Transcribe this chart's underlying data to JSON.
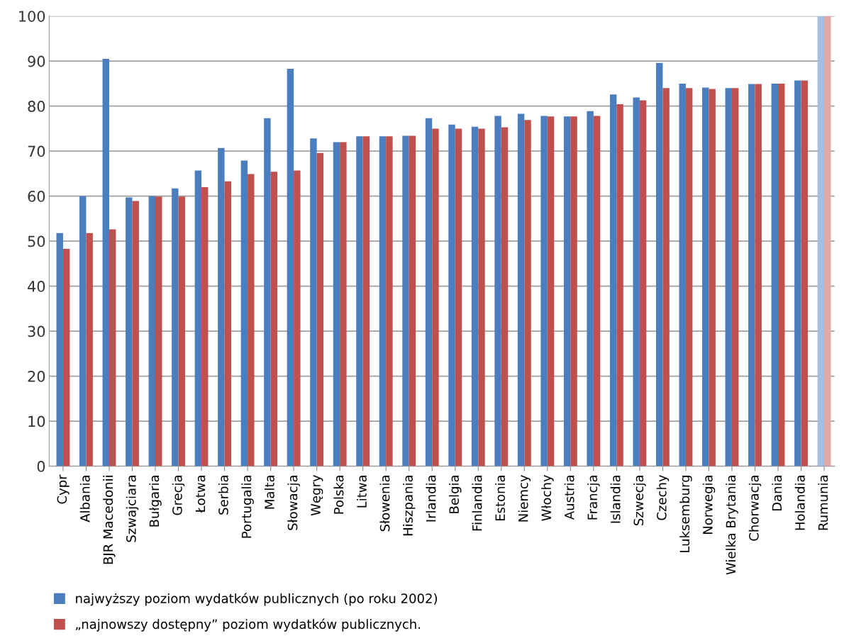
{
  "chart_data": {
    "type": "bar",
    "categories": [
      "Cypr",
      "Albania",
      "BJR Macedonii",
      "Szwajciara",
      "Bułgaria",
      "Grecja",
      "Łotwa",
      "Serbia",
      "Portugalia",
      "Malta",
      "Słowacja",
      "Węgry",
      "Polska",
      "Litwa",
      "Słowenia",
      "Hiszpania",
      "Irlandia",
      "Belgia",
      "Finlandia",
      "Estonia",
      "Niemcy",
      "Włochy",
      "Austria",
      "Francja",
      "Islandia",
      "Szwecja",
      "Czechy",
      "Luksemburg",
      "Norwegia",
      "Wielka Brytania",
      "Chorwacja",
      "Dania",
      "Holandia",
      "Rumunia"
    ],
    "series": [
      {
        "name": "najwyższy poziom wydatków publicznych (po roku 2002)",
        "color": "#4a7ebf",
        "colors": [
          "#4a7ebf",
          "#4a7ebf",
          "#4a7ebf",
          "#4a7ebf",
          "#4a7ebf",
          "#4a7ebf",
          "#4a7ebf",
          "#4a7ebf",
          "#4a7ebf",
          "#4a7ebf",
          "#4a7ebf",
          "#4a7ebf",
          "#4a7ebf",
          "#4a7ebf",
          "#4a7ebf",
          "#4a7ebf",
          "#4a7ebf",
          "#4a7ebf",
          "#4a7ebf",
          "#4a7ebf",
          "#4a7ebf",
          "#4a7ebf",
          "#4a7ebf",
          "#4a7ebf",
          "#4a7ebf",
          "#4a7ebf",
          "#4a7ebf",
          "#4a7ebf",
          "#4a7ebf",
          "#4a7ebf",
          "#4a7ebf",
          "#4a7ebf",
          "#4a7ebf",
          "#a4bde0"
        ],
        "values": [
          51.8,
          60,
          90.5,
          59.7,
          60,
          61.7,
          65.7,
          70.7,
          67.9,
          77.3,
          88.3,
          72.8,
          72,
          73.3,
          73.3,
          73.4,
          77.3,
          75.9,
          75.4,
          77.8,
          78.3,
          77.8,
          77.7,
          78.9,
          82.6,
          81.9,
          89.6,
          85,
          84.1,
          84,
          84.9,
          85,
          85.7,
          100
        ]
      },
      {
        "name": "„najnowszy dostępny” poziom wydatków publicznych.",
        "color": "#c0504d",
        "colors": [
          "#c0504d",
          "#c0504d",
          "#c0504d",
          "#c0504d",
          "#c0504d",
          "#c0504d",
          "#c0504d",
          "#c0504d",
          "#c0504d",
          "#c0504d",
          "#c0504d",
          "#c0504d",
          "#c0504d",
          "#c0504d",
          "#c0504d",
          "#c0504d",
          "#c0504d",
          "#c0504d",
          "#c0504d",
          "#c0504d",
          "#c0504d",
          "#c0504d",
          "#c0504d",
          "#c0504d",
          "#c0504d",
          "#c0504d",
          "#c0504d",
          "#c0504d",
          "#c0504d",
          "#c0504d",
          "#c0504d",
          "#c0504d",
          "#c0504d",
          "#dfa7a6"
        ],
        "values": [
          48.3,
          51.8,
          52.6,
          58.9,
          59.9,
          59.9,
          62,
          63.3,
          64.9,
          65.4,
          65.7,
          69.6,
          72,
          73.3,
          73.3,
          73.4,
          75,
          75,
          75,
          75.3,
          76.9,
          77.7,
          77.7,
          77.8,
          80.4,
          81.3,
          84,
          84,
          83.8,
          84,
          84.9,
          85,
          85.7,
          100
        ]
      }
    ],
    "ylim": [
      0,
      100
    ],
    "yticks": [
      0,
      10,
      20,
      30,
      40,
      50,
      60,
      70,
      80,
      90,
      100
    ],
    "grid": "y",
    "legend": "bottom left"
  }
}
